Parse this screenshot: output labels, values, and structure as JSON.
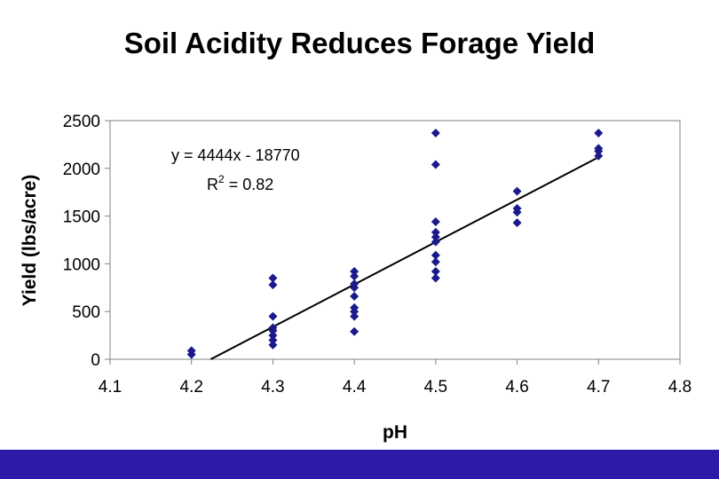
{
  "slide": {
    "title": "Soil Acidity Reduces Forage Yield"
  },
  "colors": {
    "frame": "#2b1ba8",
    "marker": "#1a1a8c",
    "trendline": "#000000"
  },
  "chart_data": {
    "type": "scatter",
    "title": "Soil Acidity Reduces Forage Yield",
    "xlabel": "pH",
    "ylabel": "Yield (lbs/acre)",
    "xlim": [
      4.1,
      4.8
    ],
    "ylim": [
      0,
      2500
    ],
    "xticks": [
      "4.1",
      "4.2",
      "4.3",
      "4.4",
      "4.5",
      "4.6",
      "4.7",
      "4.8"
    ],
    "yticks": [
      "0",
      "500",
      "1000",
      "1500",
      "2000",
      "2500"
    ],
    "grid": false,
    "marker_shape": "diamond",
    "points": [
      {
        "x": 4.2,
        "y": 90
      },
      {
        "x": 4.2,
        "y": 50
      },
      {
        "x": 4.3,
        "y": 850
      },
      {
        "x": 4.3,
        "y": 780
      },
      {
        "x": 4.3,
        "y": 450
      },
      {
        "x": 4.3,
        "y": 330
      },
      {
        "x": 4.3,
        "y": 300
      },
      {
        "x": 4.3,
        "y": 250
      },
      {
        "x": 4.3,
        "y": 200
      },
      {
        "x": 4.3,
        "y": 150
      },
      {
        "x": 4.4,
        "y": 920
      },
      {
        "x": 4.4,
        "y": 870
      },
      {
        "x": 4.4,
        "y": 790
      },
      {
        "x": 4.4,
        "y": 750
      },
      {
        "x": 4.4,
        "y": 660
      },
      {
        "x": 4.4,
        "y": 540
      },
      {
        "x": 4.4,
        "y": 500
      },
      {
        "x": 4.4,
        "y": 450
      },
      {
        "x": 4.4,
        "y": 290
      },
      {
        "x": 4.5,
        "y": 2370
      },
      {
        "x": 4.5,
        "y": 2040
      },
      {
        "x": 4.5,
        "y": 1440
      },
      {
        "x": 4.5,
        "y": 1330
      },
      {
        "x": 4.5,
        "y": 1280
      },
      {
        "x": 4.5,
        "y": 1230
      },
      {
        "x": 4.5,
        "y": 1090
      },
      {
        "x": 4.5,
        "y": 1020
      },
      {
        "x": 4.5,
        "y": 920
      },
      {
        "x": 4.5,
        "y": 850
      },
      {
        "x": 4.6,
        "y": 1760
      },
      {
        "x": 4.6,
        "y": 1580
      },
      {
        "x": 4.6,
        "y": 1540
      },
      {
        "x": 4.6,
        "y": 1430
      },
      {
        "x": 4.7,
        "y": 2370
      },
      {
        "x": 4.7,
        "y": 2210
      },
      {
        "x": 4.7,
        "y": 2180
      },
      {
        "x": 4.7,
        "y": 2130
      }
    ],
    "trendline": {
      "slope": 4444,
      "intercept": -18770,
      "x_range": [
        4.2236,
        4.7
      ],
      "equation_label": "y = 4444x - 18770",
      "r2_label_prefix": "R",
      "r2_label_sup": "2",
      "r2_label_value": " = 0.82"
    }
  }
}
